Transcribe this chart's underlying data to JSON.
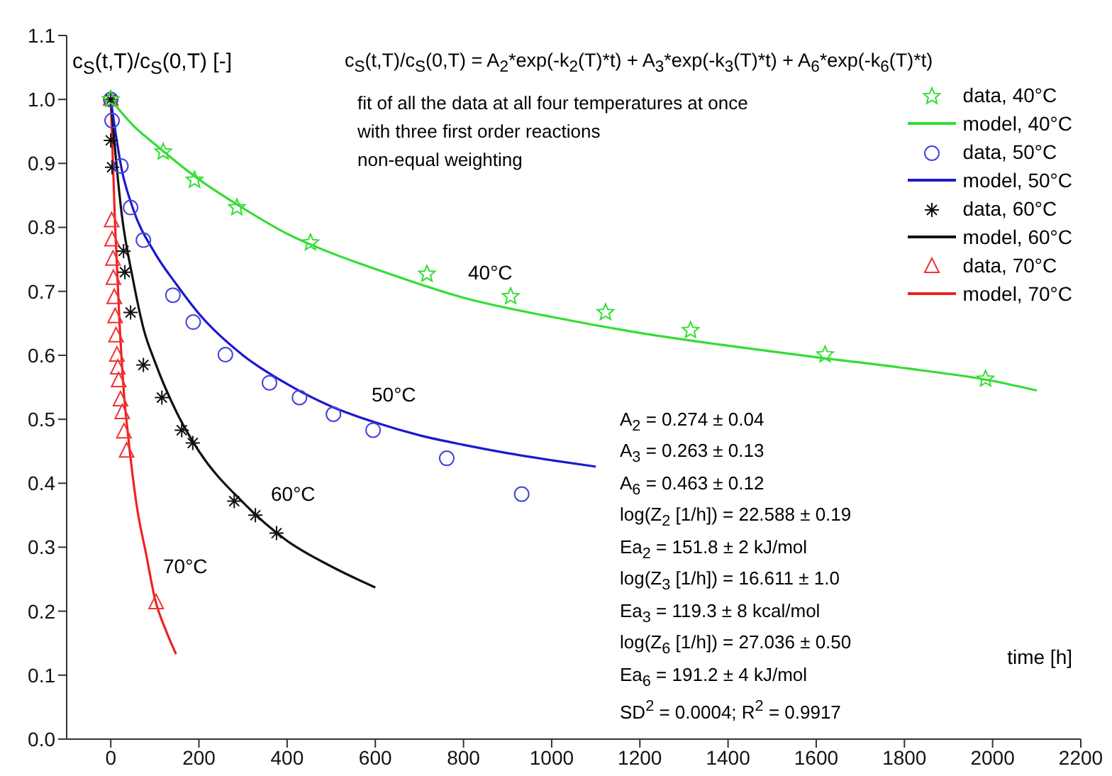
{
  "chart_data": {
    "type": "scatter",
    "xlabel": "time [h]",
    "ylabel": "c$_{S}$(t,T)/c$_{S}$(0,T) [-]",
    "xlim": [
      -100,
      2200
    ],
    "xticks": [
      0,
      200,
      400,
      600,
      800,
      1000,
      1200,
      1400,
      1600,
      1800,
      2000,
      2200
    ],
    "ylim": [
      0,
      1.1
    ],
    "yticks": [
      {
        "value": 0,
        "label": "0.0"
      },
      {
        "value": 0.1,
        "label": "0.1"
      },
      {
        "value": 0.2,
        "label": "0.2"
      },
      {
        "value": 0.3,
        "label": "0.3"
      },
      {
        "value": 0.4,
        "label": "0.4"
      },
      {
        "value": 0.5,
        "label": "0.5"
      },
      {
        "value": 0.6,
        "label": "0.6"
      },
      {
        "value": 0.7,
        "label": "0.7"
      },
      {
        "value": 0.8,
        "label": "0.8"
      },
      {
        "value": 0.9,
        "label": "0.9"
      },
      {
        "value": 1,
        "label": "1.0"
      },
      {
        "value": 1.1,
        "label": "1.1"
      }
    ],
    "legend": "top right",
    "series": [
      {
        "name": "data, 40°C",
        "marker": "star",
        "color": "#33dd33",
        "x": [
          0,
          119,
          190,
          286,
          453,
          717,
          907,
          1122,
          1315,
          1620,
          1984
        ],
        "values": [
          1.0,
          0.918,
          0.874,
          0.831,
          0.776,
          0.727,
          0.692,
          0.667,
          0.639,
          0.601,
          0.563
        ]
      },
      {
        "name": "model, 40°C",
        "type": "line",
        "color": "#33dd33",
        "x": [
          0,
          50,
          100,
          200,
          300,
          400,
          500,
          600,
          800,
          1000,
          1200,
          1400,
          1600,
          1800,
          2000,
          2100
        ],
        "values": [
          1.0,
          0.96,
          0.93,
          0.875,
          0.83,
          0.79,
          0.76,
          0.735,
          0.69,
          0.66,
          0.635,
          0.615,
          0.597,
          0.58,
          0.56,
          0.545
        ]
      },
      {
        "name": "data, 50°C",
        "marker": "circle",
        "color": "#4444dd",
        "x": [
          0,
          3,
          23,
          45,
          74,
          141,
          187,
          260,
          360,
          428,
          505,
          595,
          762,
          932
        ],
        "values": [
          1.0,
          0.967,
          0.896,
          0.831,
          0.78,
          0.694,
          0.652,
          0.601,
          0.557,
          0.534,
          0.508,
          0.483,
          0.439,
          0.383
        ]
      },
      {
        "name": "model, 50°C",
        "type": "line",
        "color": "#1a1acc",
        "x": [
          0,
          25,
          50,
          100,
          150,
          200,
          300,
          400,
          500,
          600,
          700,
          800,
          900,
          1000,
          1100
        ],
        "values": [
          1.0,
          0.89,
          0.83,
          0.76,
          0.71,
          0.665,
          0.6,
          0.555,
          0.52,
          0.495,
          0.475,
          0.46,
          0.447,
          0.436,
          0.426
        ]
      },
      {
        "name": "data, 60°C",
        "marker": "cross",
        "color": "#111111",
        "x": [
          0,
          0,
          3,
          29,
          32,
          45,
          74,
          116,
          161,
          186,
          280,
          328,
          376
        ],
        "values": [
          1.0,
          0.936,
          0.894,
          0.763,
          0.73,
          0.667,
          0.585,
          0.534,
          0.483,
          0.463,
          0.372,
          0.35,
          0.322
        ]
      },
      {
        "name": "model, 60°C",
        "type": "line",
        "color": "#111111",
        "x": [
          0,
          10,
          25,
          50,
          75,
          100,
          150,
          200,
          300,
          400,
          500,
          600
        ],
        "values": [
          1.0,
          0.92,
          0.82,
          0.72,
          0.64,
          0.59,
          0.51,
          0.45,
          0.37,
          0.31,
          0.27,
          0.237
        ]
      },
      {
        "name": "data, 70°C",
        "marker": "triangle",
        "color": "#ee3333",
        "x": [
          0,
          2,
          3,
          5,
          6,
          8,
          10,
          12,
          14,
          16,
          18,
          22,
          26,
          30,
          36,
          103
        ],
        "values": [
          1.0,
          0.81,
          0.78,
          0.75,
          0.72,
          0.69,
          0.66,
          0.63,
          0.6,
          0.58,
          0.56,
          0.53,
          0.51,
          0.48,
          0.45,
          0.213
        ]
      },
      {
        "name": "model, 70°C",
        "type": "line",
        "color": "#ee2222",
        "x": [
          0,
          10,
          20,
          30,
          40,
          60,
          80,
          100,
          125,
          148
        ],
        "values": [
          1.0,
          0.8,
          0.65,
          0.54,
          0.47,
          0.36,
          0.29,
          0.22,
          0.17,
          0.133
        ]
      }
    ],
    "annotations": [
      "c$_{S}$(t,T)/c$_{S}$(0,T) = A$_{2}$*exp(-k$_{2}$(T)*t) + A$_{3}$*exp(-k$_{3}$(T)*t) + A$_{6}$*exp(-k$_{6}$(T)*t)",
      "fit of all the data at all four temperatures at once",
      "with three first order reactions",
      "non-equal weighting",
      "A$_{2}$ = 0.274 ± 0.04",
      "A$_{3}$ = 0.263 ± 0.13",
      "A$_{6}$ = 0.463 ± 0.12",
      "log(Z$_{2}$ [1/h]) = 22.588 ± 0.19",
      "Ea$_{2}$ = 151.8 ± 2 kJ/mol",
      "log(Z$_{3}$ [1/h]) = 16.611 ± 1.0",
      "Ea$_{3}$ = 119.3 ± 8 kcal/mol",
      "log(Z$_{6}$ [1/h]) = 27.036 ± 0.50",
      "Ea$_{6}$ = 191.2 ± 4 kJ/mol",
      "SD$^{2}$ = 0.0004;  R$^{2}$ = 0.9917",
      "40°C",
      "50°C",
      "60°C",
      "70°C"
    ]
  }
}
